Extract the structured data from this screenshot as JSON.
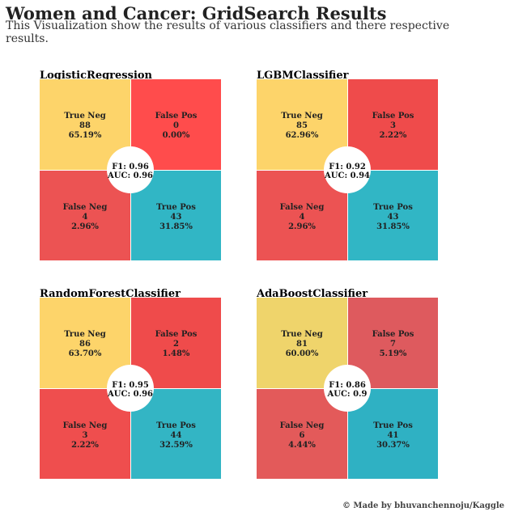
{
  "header": {
    "title": "Women and Cancer: GridSearch Results",
    "subtitle": "This Visualization show the results of various classifiers and there respective results."
  },
  "footer": {
    "credit": "© Made by bhuvanchennoju/Kaggle"
  },
  "colors": {
    "true_neg": "#fdd56a",
    "false_pos": "#f04a4a",
    "false_neg": "#e65252",
    "true_pos": "#30b5c5",
    "center": "#ffffff"
  },
  "chart_data": [
    {
      "type": "heatmap",
      "title": "LogisticRegression",
      "cells": [
        {
          "label": "True Neg",
          "count": "88",
          "pct": "65.19%",
          "color": "#fdd46a"
        },
        {
          "label": "False Pos",
          "count": "0",
          "pct": "0.00%",
          "color": "#ff4c4c"
        },
        {
          "label": "False Neg",
          "count": "4",
          "pct": "2.96%",
          "color": "#ec5353"
        },
        {
          "label": "True Pos",
          "count": "43",
          "pct": "31.85%",
          "color": "#31b6c5"
        }
      ],
      "f1": "F1: 0.96",
      "auc": "AUC: 0.96"
    },
    {
      "type": "heatmap",
      "title": "LGBMClassifier",
      "cells": [
        {
          "label": "True Neg",
          "count": "85",
          "pct": "62.96%",
          "color": "#fdd46a"
        },
        {
          "label": "False Pos",
          "count": "3",
          "pct": "2.22%",
          "color": "#ef4b4b"
        },
        {
          "label": "False Neg",
          "count": "4",
          "pct": "2.96%",
          "color": "#ec5353"
        },
        {
          "label": "True Pos",
          "count": "43",
          "pct": "31.85%",
          "color": "#31b6c5"
        }
      ],
      "f1": "F1: 0.92",
      "auc": "AUC: 0.94"
    },
    {
      "type": "heatmap",
      "title": "RandomForestClassifier",
      "cells": [
        {
          "label": "True Neg",
          "count": "86",
          "pct": "63.70%",
          "color": "#fdd46a"
        },
        {
          "label": "False Pos",
          "count": "2",
          "pct": "1.48%",
          "color": "#ef4b4b"
        },
        {
          "label": "False Neg",
          "count": "3",
          "pct": "2.22%",
          "color": "#ef4e4e"
        },
        {
          "label": "True Pos",
          "count": "44",
          "pct": "32.59%",
          "color": "#33b5c4"
        }
      ],
      "f1": "F1: 0.95",
      "auc": "AUC: 0.96"
    },
    {
      "type": "heatmap",
      "title": "AdaBoostClassifier",
      "cells": [
        {
          "label": "True Neg",
          "count": "81",
          "pct": "60.00%",
          "color": "#efd46b"
        },
        {
          "label": "False Pos",
          "count": "7",
          "pct": "5.19%",
          "color": "#de5a5e"
        },
        {
          "label": "False Neg",
          "count": "6",
          "pct": "4.44%",
          "color": "#e35a5a"
        },
        {
          "label": "True Pos",
          "count": "41",
          "pct": "30.37%",
          "color": "#2fb1c3"
        }
      ],
      "f1": "F1: 0.86",
      "auc": "AUC: 0.9"
    }
  ]
}
